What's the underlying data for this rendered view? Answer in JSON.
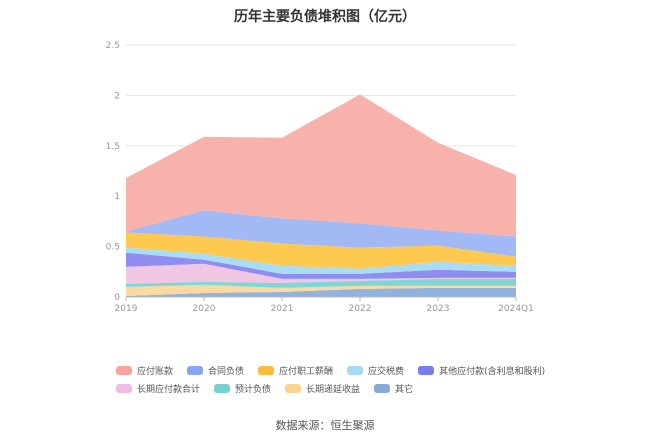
{
  "title": "历年主要负债堆积图（亿元）",
  "source": "数据来源：恒生聚源",
  "chart_data": {
    "type": "area",
    "stacked": true,
    "title": "历年主要负债堆积图（亿元）",
    "xlabel": "",
    "ylabel": "",
    "x": [
      "2019",
      "2020",
      "2021",
      "2022",
      "2023",
      "2024Q1"
    ],
    "ylim": [
      0,
      2.5
    ],
    "yticks": [
      "0",
      "0.5",
      "1",
      "1.5",
      "2",
      "2.5"
    ],
    "grid": true,
    "legend_position": "bottom",
    "series": [
      {
        "name": "其它",
        "color": "#8fb2de",
        "values": [
          0.01,
          0.04,
          0.05,
          0.08,
          0.09,
          0.09
        ]
      },
      {
        "name": "长期递延收益",
        "color": "#fcd9a0",
        "values": [
          0.09,
          0.08,
          0.04,
          0.03,
          0.02,
          0.02
        ]
      },
      {
        "name": "预计负债",
        "color": "#7fd6d4",
        "values": [
          0.03,
          0.03,
          0.05,
          0.05,
          0.07,
          0.07
        ]
      },
      {
        "name": "长期应付款合计",
        "color": "#f1c6e2",
        "values": [
          0.17,
          0.18,
          0.04,
          0.02,
          0.01,
          0.01
        ]
      },
      {
        "name": "其他应付款(含利息和股利)",
        "color": "#8f8df0",
        "values": [
          0.14,
          0.04,
          0.05,
          0.05,
          0.08,
          0.06
        ]
      },
      {
        "name": "应交税费",
        "color": "#a8dcf7",
        "values": [
          0.05,
          0.06,
          0.08,
          0.05,
          0.08,
          0.06
        ]
      },
      {
        "name": "应付职工薪酬",
        "color": "#fdc94f",
        "values": [
          0.15,
          0.17,
          0.22,
          0.21,
          0.16,
          0.09
        ]
      },
      {
        "name": "合同负债",
        "color": "#a3b9f6",
        "values": [
          0.01,
          0.26,
          0.25,
          0.24,
          0.15,
          0.2
        ]
      },
      {
        "name": "应付账款",
        "color": "#f8b2ac",
        "values": [
          0.53,
          0.73,
          0.8,
          1.28,
          0.87,
          0.61
        ]
      }
    ]
  },
  "legend_rows": [
    [
      {
        "label": "应付账款",
        "color": "#f8a39b"
      },
      {
        "label": "合同负债",
        "color": "#86a5f3"
      },
      {
        "label": "应付职工薪酬",
        "color": "#fcbc3a"
      },
      {
        "label": "应交税费",
        "color": "#a6d9f5"
      },
      {
        "label": "其他应付款(含利息和股利)",
        "color": "#7b79ee"
      }
    ],
    [
      {
        "label": "长期应付款合计",
        "color": "#f0bde0"
      },
      {
        "label": "预计负债",
        "color": "#78d2d0"
      },
      {
        "label": "长期递延收益",
        "color": "#fbd493"
      },
      {
        "label": "其它",
        "color": "#86a9d8"
      }
    ]
  ]
}
